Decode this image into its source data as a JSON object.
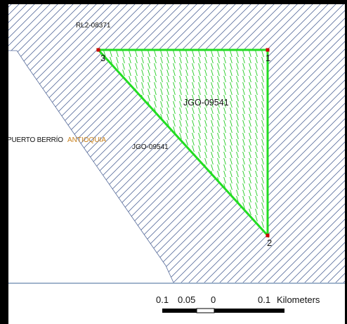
{
  "map": {
    "colors": {
      "hatch": "#5a6e9c",
      "selected_outline": "#22dd22",
      "selected_hatch": "#22cc22",
      "vertex": "#cc0000",
      "frame": "#000000",
      "scale_bar_line": "#a0b4cc"
    },
    "labels": {
      "concession_top": "RL2-08371",
      "polygon_main": "JGO-09541",
      "polygon_edge": "JGO-09541",
      "municipality": "PUERTO BERRÍO",
      "department": "ANTIOQUIA"
    },
    "vertices": [
      {
        "number": "1"
      },
      {
        "number": "2"
      },
      {
        "number": "3"
      }
    ],
    "scale_bar": {
      "ticks": [
        "0.1",
        "0.05",
        "0",
        "0.1"
      ],
      "unit": "Kilometers"
    }
  }
}
